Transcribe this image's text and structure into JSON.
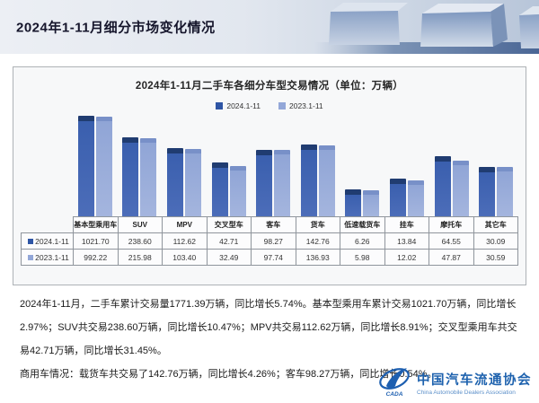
{
  "header": {
    "title": "2024年1-11月细分市场变化情况"
  },
  "panel": {
    "chart_title": "2024年1-11月二手车各细分车型交易情况（单位：万辆）"
  },
  "chart_data": {
    "type": "bar",
    "title": "2024年1-11月二手车各细分车型交易情况",
    "unit": "万辆",
    "yscale": "log",
    "grid": false,
    "legend_position": "top",
    "categories": [
      "基本型乘用车",
      "SUV",
      "MPV",
      "交叉型车",
      "客车",
      "货车",
      "低速载货车",
      "挂车",
      "摩托车",
      "其它车"
    ],
    "series": [
      {
        "name": "2024.1-11",
        "color": "#2e55a5",
        "values": [
          1021.7,
          238.6,
          112.62,
          42.71,
          98.27,
          142.76,
          6.26,
          13.84,
          64.55,
          30.09
        ],
        "display": [
          "1021.70",
          "238.60",
          "112.62",
          "42.71",
          "98.27",
          "142.76",
          "6.26",
          "13.84",
          "64.55",
          "30.09"
        ]
      },
      {
        "name": "2023.1-11",
        "color": "#93a7d8",
        "values": [
          992.22,
          215.98,
          103.4,
          32.49,
          97.74,
          136.93,
          5.98,
          12.02,
          47.87,
          30.59
        ],
        "display": [
          "992.22",
          "215.98",
          "103.40",
          "32.49",
          "97.74",
          "136.93",
          "5.98",
          "12.02",
          "47.87",
          "30.59"
        ]
      }
    ]
  },
  "summary": {
    "p1": "2024年1-11月，二手车累计交易量1771.39万辆，同比增长5.74%。基本型乘用车累计交易1021.70万辆，同比增长2.97%；SUV共交易238.60万辆，同比增长10.47%；MPV共交易112.62万辆，同比增长8.91%；交叉型乘用车共交易42.71万辆，同比增长31.45%。",
    "p2": "商用车情况：载货车共交易了142.76万辆，同比增长4.26%；客车98.27万辆，同比增长0.54%。"
  },
  "logo": {
    "cn": "中国汽车流通协会",
    "en": "China Automobile Dealers Association",
    "acronym": "CADA",
    "color": "#1e62ae"
  }
}
